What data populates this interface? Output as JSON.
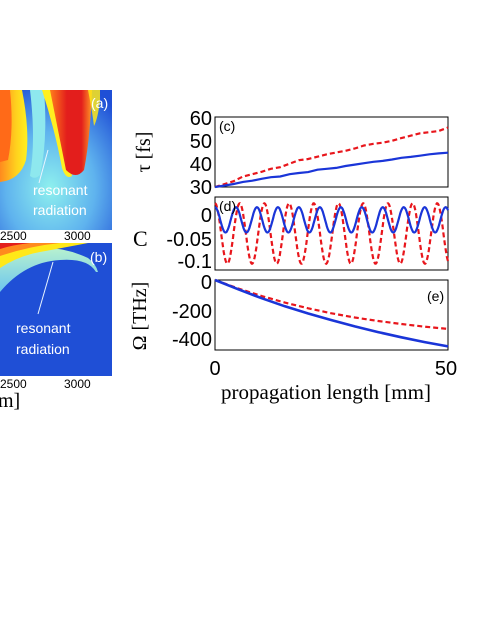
{
  "colors": {
    "solid_series": "#1a35d8",
    "dashed_series": "#e8161c",
    "map_background": "#1f4fd6",
    "map_hot": "#e31e1c",
    "map_warm": "#ff8a1e",
    "map_yellow": "#ffe818",
    "map_cyan": "#8ee8ee"
  },
  "left_maps": {
    "panel_a": {
      "tag": "(a)",
      "annotation_line1": "resonant",
      "annotation_line2": "radiation",
      "tick_labels": [
        "2500",
        "3000"
      ]
    },
    "panel_b": {
      "tag": "(b)",
      "annotation_line1": "resonant",
      "annotation_line2": "radiation",
      "tick_labels": [
        "2500",
        "3000"
      ]
    },
    "axis_label_fragment": "m]"
  },
  "shared_xlabel": "propagation length [mm]",
  "chart_data": [
    {
      "id": "c",
      "type": "line",
      "tag": "(c)",
      "ylabel": "τ [fs]",
      "xlim": [
        0,
        50
      ],
      "ylim": [
        30,
        60
      ],
      "yticks": [
        "60",
        "50",
        "40",
        "30"
      ],
      "x": [
        0,
        2,
        4,
        6,
        8,
        10,
        12,
        14,
        16,
        18,
        20,
        22,
        24,
        26,
        28,
        30,
        32,
        34,
        36,
        38,
        40,
        42,
        44,
        46,
        48,
        50
      ],
      "series": [
        {
          "style": "solid",
          "color": "#1a35d8",
          "values": [
            30,
            30.6,
            31.3,
            32.2,
            32.7,
            33.5,
            34.2,
            34.5,
            35.5,
            36.0,
            36.4,
            37.4,
            37.8,
            38.2,
            39.0,
            39.6,
            40.2,
            40.8,
            41.2,
            41.8,
            42.5,
            42.9,
            43.4,
            44.0,
            44.4,
            44.7
          ]
        },
        {
          "style": "dashed",
          "color": "#e8161c",
          "values": [
            30,
            31.2,
            32.5,
            34.5,
            35.5,
            36.5,
            37.8,
            38.5,
            40.0,
            41.5,
            42.0,
            43.0,
            44.0,
            44.8,
            45.5,
            46.5,
            47.8,
            48.5,
            49.0,
            49.8,
            51.0,
            52.0,
            53.0,
            53.5,
            54.0,
            55.5
          ]
        }
      ]
    },
    {
      "id": "d",
      "type": "line",
      "tag": "(d)",
      "ylabel": "C",
      "xlim": [
        0,
        50
      ],
      "ylim": [
        -0.135,
        0.015
      ],
      "yticks": [
        "0",
        "-0.05",
        "-0.1"
      ],
      "series": [
        {
          "style": "solid",
          "color": "#1a35d8",
          "model": "oscillation",
          "mean": -0.032,
          "amplitude": 0.026,
          "period": 4.5
        },
        {
          "style": "dashed",
          "color": "#e8161c",
          "model": "oscillation",
          "mean": -0.06,
          "amplitude": 0.062,
          "period": 5.3
        }
      ]
    },
    {
      "id": "e",
      "type": "line",
      "tag": "(e)",
      "ylabel": "Ω [THz]",
      "xlim": [
        0,
        50
      ],
      "ylim": [
        -480,
        0
      ],
      "yticks": [
        "0",
        "-200",
        "-400"
      ],
      "xticks": [
        "0",
        "50"
      ],
      "x": [
        0,
        5,
        10,
        15,
        20,
        25,
        30,
        35,
        40,
        45,
        50
      ],
      "series": [
        {
          "style": "solid",
          "color": "#1a35d8",
          "values": [
            0,
            -64,
            -125,
            -180,
            -230,
            -275,
            -318,
            -357,
            -393,
            -426,
            -455
          ]
        },
        {
          "style": "dashed",
          "color": "#e8161c",
          "values": [
            0,
            -58,
            -110,
            -155,
            -194,
            -228,
            -257,
            -281,
            -302,
            -320,
            -335
          ]
        }
      ]
    }
  ]
}
